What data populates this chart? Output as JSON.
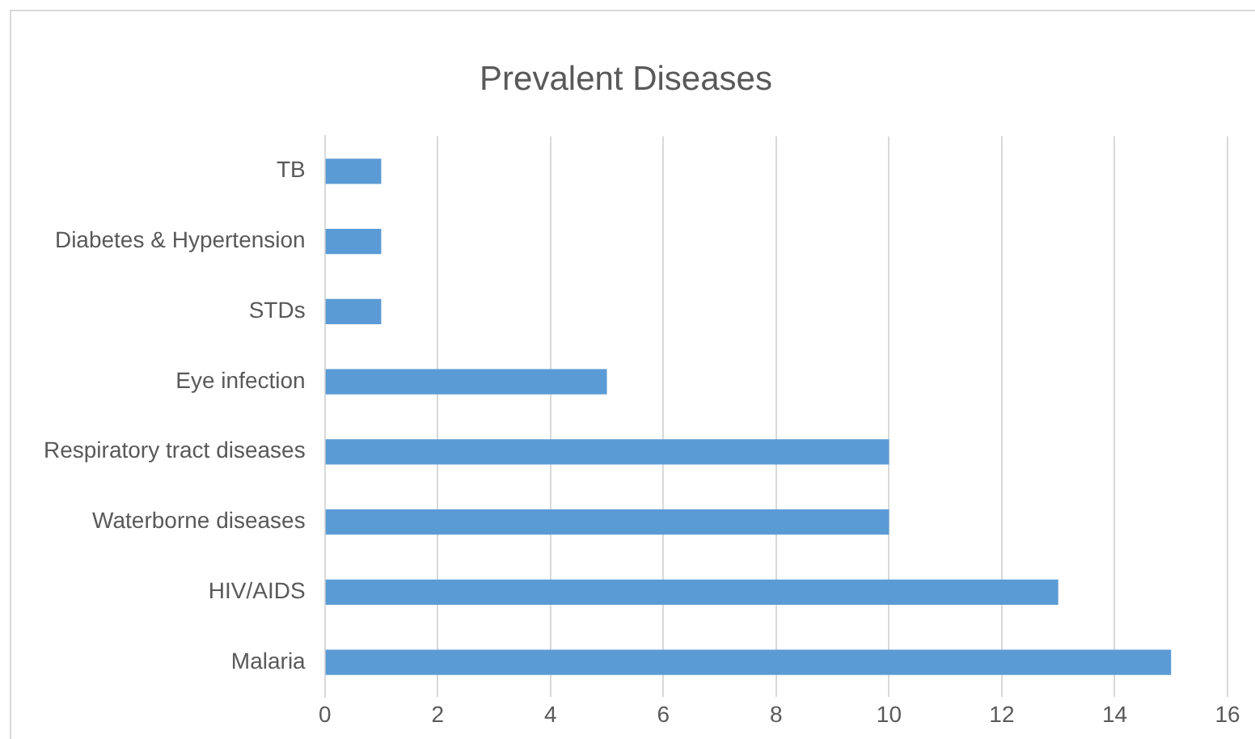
{
  "chart_data": {
    "type": "bar",
    "orientation": "horizontal",
    "title": "Prevalent Diseases",
    "categories": [
      "TB",
      "Diabetes & Hypertension",
      "STDs",
      "Eye infection",
      "Respiratory tract diseases",
      "Waterborne diseases",
      "HIV/AIDS",
      "Malaria"
    ],
    "values": [
      1,
      1,
      1,
      5,
      10,
      10,
      13,
      15
    ],
    "color": "#5b9bd5",
    "xlim": [
      0,
      16
    ],
    "xticks": [
      0,
      2,
      4,
      6,
      8,
      10,
      12,
      14,
      16
    ],
    "grid": "x",
    "legend": false
  }
}
